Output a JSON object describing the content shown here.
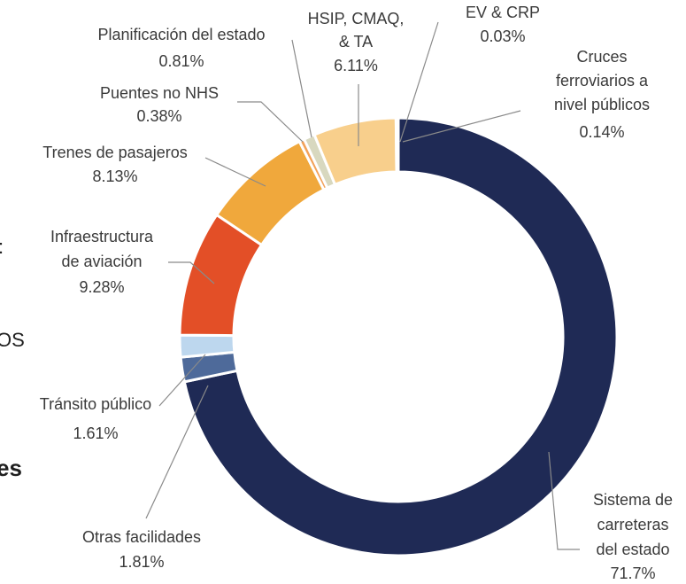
{
  "chart_data": {
    "type": "donut",
    "categories": [
      "Sistema de\ncarreteras\ndel estado",
      "Otras facilidades",
      "Tránsito público",
      "Infraestructura\nde aviación",
      "Trenes de pasajeros",
      "Puentes no NHS",
      "Planificación del estado",
      "HSIP, CMAQ,\n& TA",
      "EV & CRP",
      "Cruces\nferroviarios a\nnivel públicos"
    ],
    "values": [
      71.7,
      1.81,
      1.61,
      9.28,
      8.13,
      0.38,
      0.81,
      6.11,
      0.03,
      0.14
    ],
    "value_labels": [
      "71.7%",
      "1.81%",
      "1.61%",
      "9.28%",
      "8.13%",
      "0.38%",
      "0.81%",
      "6.11%",
      "0.03%",
      "0.14%"
    ],
    "colors": [
      "#1f2a55",
      "#4e6a9a",
      "#bdd7ee",
      "#e34f27",
      "#f0a83c",
      "#f2a25a",
      "#d8d8bf",
      "#f8cf8c",
      "#e3e3e3",
      "#a8aebb"
    ]
  },
  "fragments": [
    ":",
    "OS",
    "es"
  ]
}
